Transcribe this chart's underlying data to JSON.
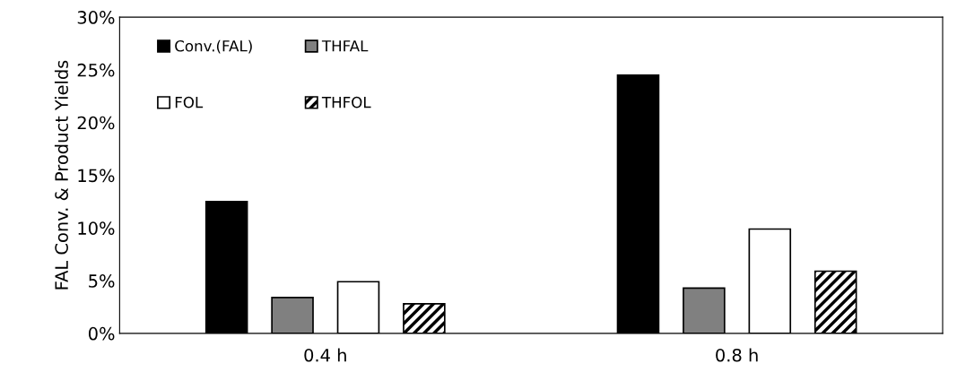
{
  "chart_data": {
    "type": "bar",
    "ylabel": "FAL Conv. & Product Yields",
    "categories": [
      "0.4 h",
      "0.8 h"
    ],
    "series": [
      {
        "name": "Conv.(FAL)",
        "color": "#000000",
        "values": [
          12.5,
          24.5
        ]
      },
      {
        "name": "THFAL",
        "color": "#808080",
        "values": [
          3.4,
          4.3
        ]
      },
      {
        "name": "FOL",
        "color": "#ffffff",
        "values": [
          4.9,
          9.9
        ]
      },
      {
        "name": "THFOL",
        "color": "#000000",
        "values": [
          2.8,
          5.9
        ]
      }
    ],
    "ylim": [
      0,
      30
    ],
    "yticks": [
      {
        "value": 0,
        "label": "0%"
      },
      {
        "value": 5,
        "label": "5%"
      },
      {
        "value": 10,
        "label": "10%"
      },
      {
        "value": 15,
        "label": "15%"
      },
      {
        "value": 20,
        "label": "20%"
      },
      {
        "value": 25,
        "label": "25%"
      },
      {
        "value": 30,
        "label": "30%"
      }
    ],
    "grid": false,
    "legend": "top left"
  }
}
